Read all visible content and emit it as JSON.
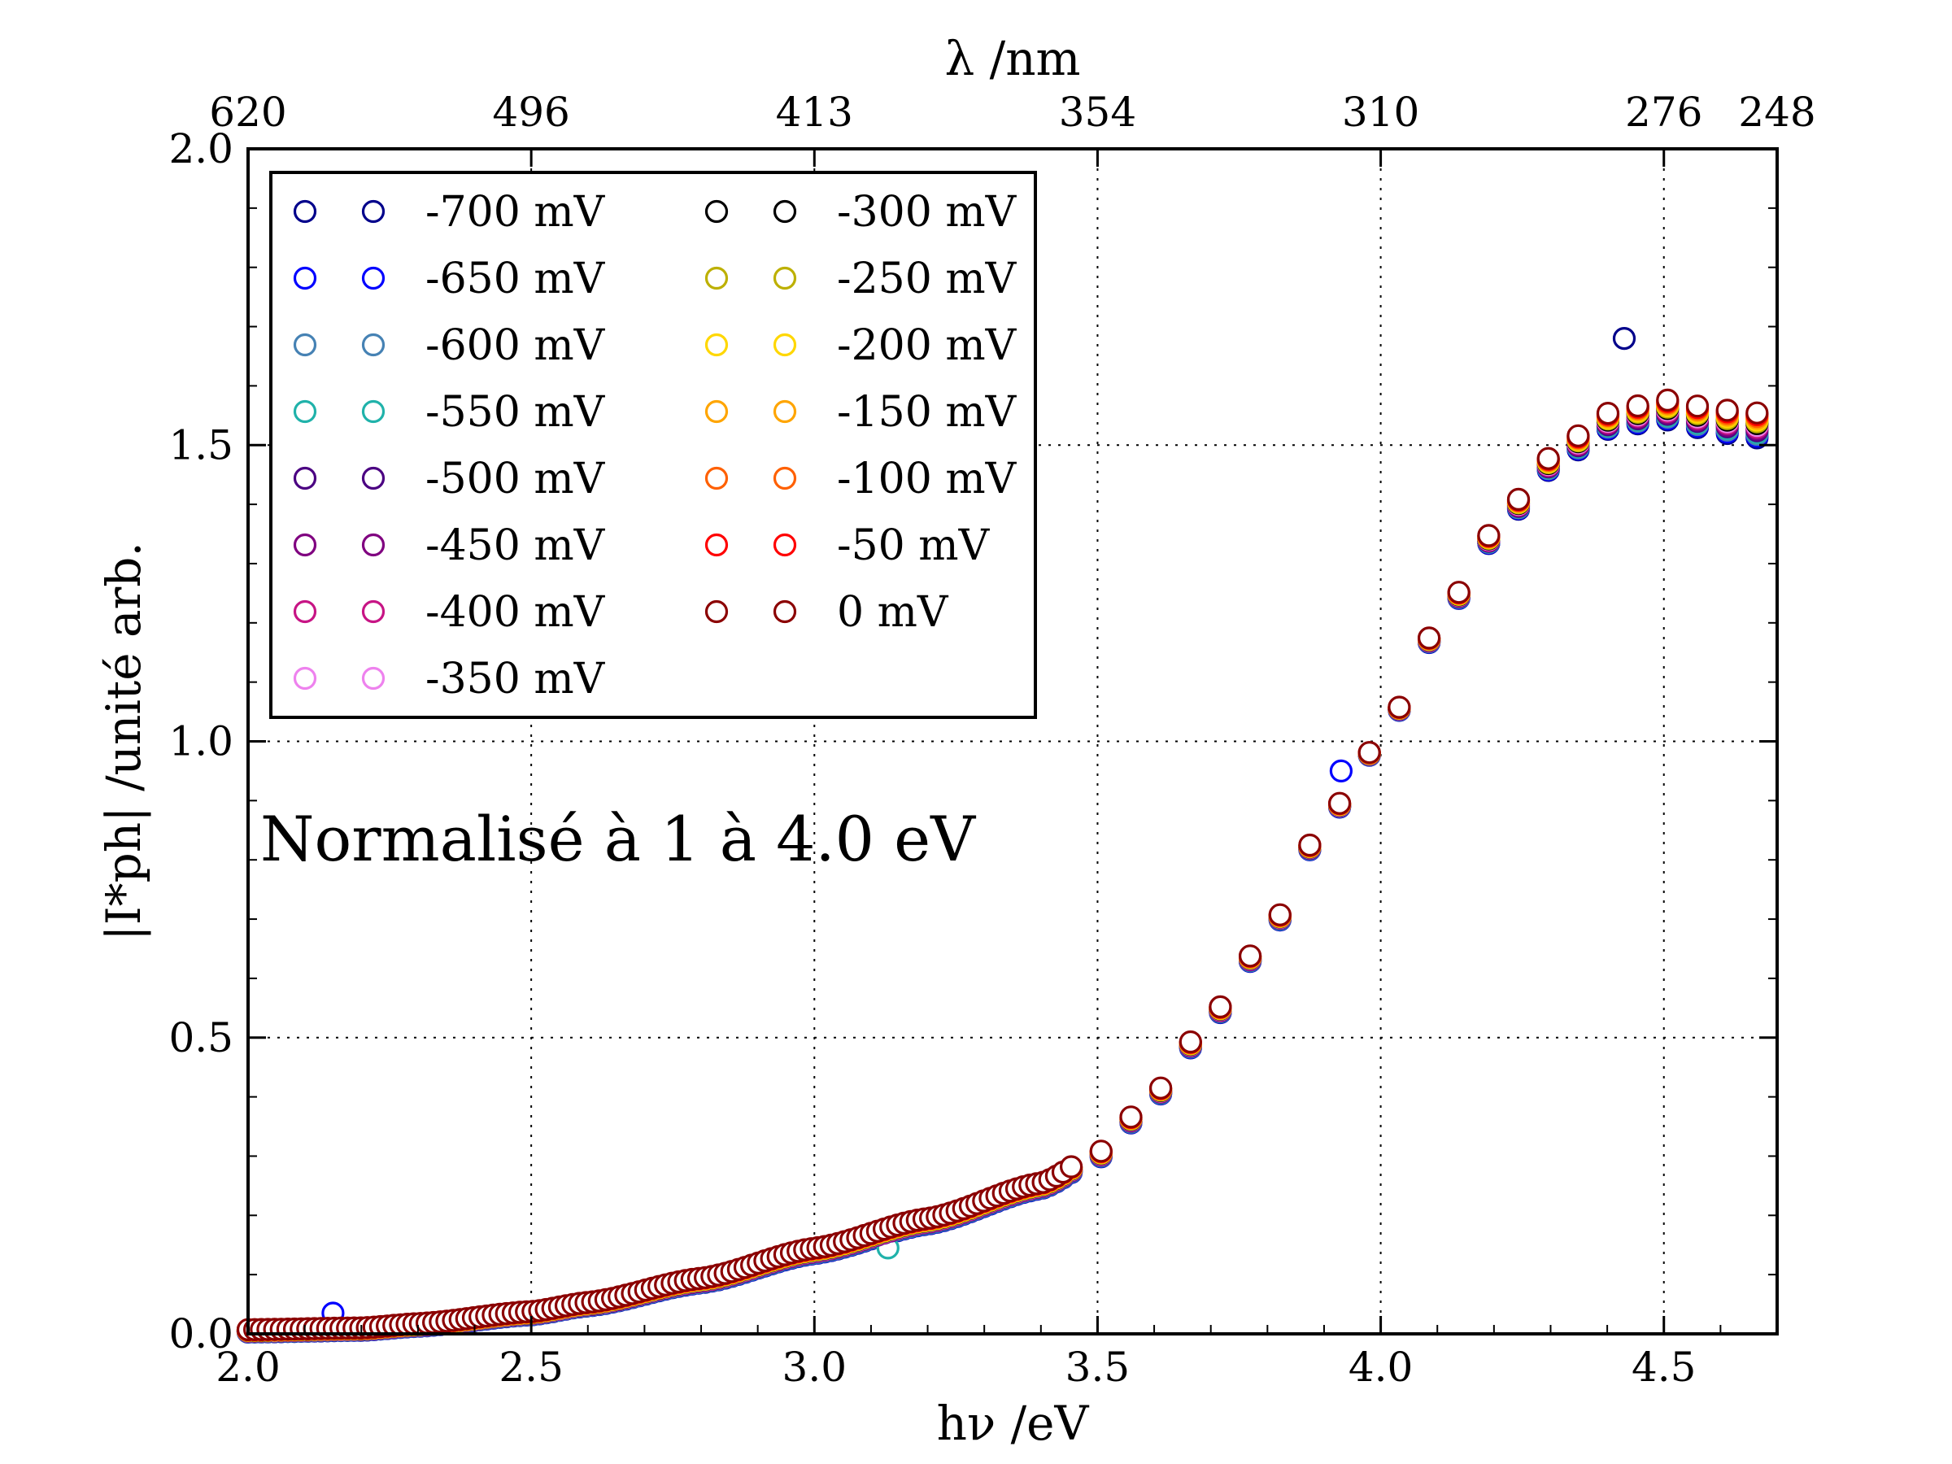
{
  "chart_data": {
    "type": "scatter",
    "xlabel": "hν /eV",
    "ylabel": "|I*ph| /unité arb.",
    "top_xlabel": "λ /nm",
    "xlim": [
      2.0,
      4.7
    ],
    "ylim": [
      0.0,
      2.0
    ],
    "x_ticks": [
      "2.0",
      "2.5",
      "3.0",
      "3.5",
      "4.0",
      "4.5"
    ],
    "y_ticks": [
      "0.0",
      "0.5",
      "1.0",
      "1.5",
      "2.0"
    ],
    "top_ticks": [
      {
        "label": "620",
        "energy": 2.0
      },
      {
        "label": "496",
        "energy": 2.5
      },
      {
        "label": "413",
        "energy": 3.0
      },
      {
        "label": "354",
        "energy": 3.5
      },
      {
        "label": "310",
        "energy": 4.0
      },
      {
        "label": "276",
        "energy": 4.5
      },
      {
        "label": "248",
        "energy": 5.0
      }
    ],
    "grid": true,
    "legend_position": "top-left",
    "annotation": "Normalisé à 1 à 4.0 eV",
    "normalization_x": 4.0,
    "x_start": 2.0,
    "x_step": 0.0117,
    "x_count": 232,
    "series": [
      {
        "name": "-700 mV",
        "color": "#00008b",
        "outliers": [
          [
            4.43,
            1.68
          ]
        ]
      },
      {
        "name": "-650 mV",
        "color": "#0000ff",
        "outliers": [
          [
            2.15,
            0.035
          ],
          [
            3.93,
            0.95
          ]
        ]
      },
      {
        "name": "-600 mV",
        "color": "#4682b4",
        "outliers": []
      },
      {
        "name": "-550 mV",
        "color": "#20b2aa",
        "outliers": [
          [
            3.13,
            0.145
          ]
        ]
      },
      {
        "name": "-500 mV",
        "color": "#4b0082",
        "outliers": []
      },
      {
        "name": "-450 mV",
        "color": "#800080",
        "outliers": []
      },
      {
        "name": "-400 mV",
        "color": "#c71585",
        "outliers": []
      },
      {
        "name": "-350 mV",
        "color": "#ee82ee",
        "outliers": []
      },
      {
        "name": "-300 mV",
        "color": "#000000",
        "outliers": []
      },
      {
        "name": "-250 mV",
        "color": "#bdb000",
        "outliers": []
      },
      {
        "name": "-200 mV",
        "color": "#ffd700",
        "outliers": []
      },
      {
        "name": "-150 mV",
        "color": "#ffa500",
        "outliers": []
      },
      {
        "name": "-100 mV",
        "color": "#ff6000",
        "outliers": []
      },
      {
        "name": "-50 mV",
        "color": "#ff0000",
        "outliers": []
      },
      {
        "name": "0 mV",
        "color": "#8b0000",
        "outliers": []
      }
    ],
    "curve_model": {
      "knots_x": [
        2.0,
        2.2,
        2.3,
        2.5,
        2.6,
        2.8,
        3.0,
        3.2,
        3.4,
        3.5,
        3.6,
        3.7,
        3.8,
        3.9,
        4.0,
        4.1,
        4.2,
        4.3,
        4.4,
        4.5,
        4.6,
        4.7
      ],
      "knots_y": [
        0.005,
        0.008,
        0.015,
        0.035,
        0.05,
        0.09,
        0.14,
        0.19,
        0.25,
        0.3,
        0.4,
        0.53,
        0.67,
        0.86,
        1.0,
        1.19,
        1.35,
        1.47,
        1.54,
        1.56,
        1.54,
        1.53
      ]
    }
  }
}
